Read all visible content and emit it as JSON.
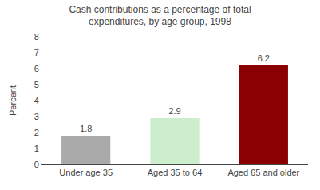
{
  "chart_data": {
    "type": "bar",
    "title": "Cash contributions as a percentage of total\nexpenditures, by age group, 1998",
    "categories": [
      "Under age 35",
      "Aged 35 to 64",
      "Aged 65 and older"
    ],
    "values": [
      1.8,
      2.9,
      6.2
    ],
    "colors": [
      "#aaaaaa",
      "#cceecc",
      "#8b0000"
    ],
    "ylabel": "Percent",
    "ylim": [
      0,
      8
    ],
    "yticks": [
      0,
      1,
      2,
      3,
      4,
      5,
      6,
      7,
      8
    ],
    "data_labels": true,
    "grid": false
  }
}
